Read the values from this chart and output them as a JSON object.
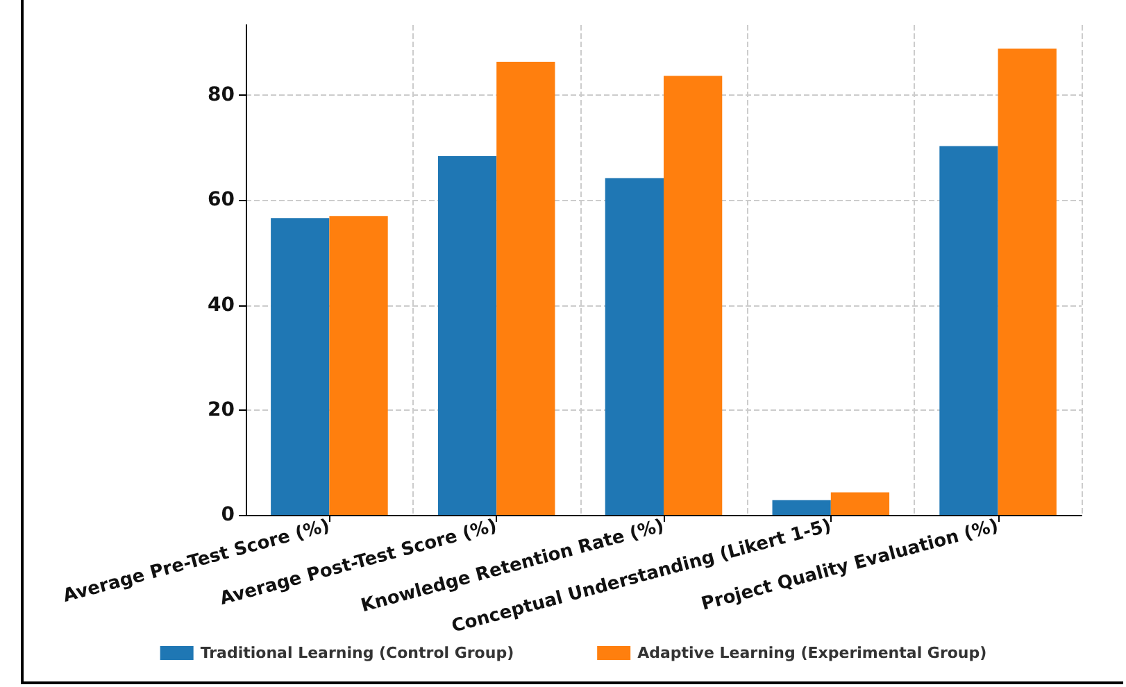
{
  "chart_data": {
    "type": "bar",
    "categories": [
      "Average Pre-Test Score (%)",
      "Average Post-Test Score (%)",
      "Knowledge Retention Rate (%)",
      "Conceptual Understanding (Likert 1-5)",
      "Project Quality Evaluation (%)"
    ],
    "series": [
      {
        "name": "Traditional Learning (Control Group)",
        "color": "#1f77b4",
        "values": [
          56.6,
          68.4,
          64.2,
          2.8,
          70.3
        ]
      },
      {
        "name": "Adaptive Learning (Experimental Group)",
        "color": "#ff7f0e",
        "values": [
          57.0,
          86.4,
          83.7,
          4.3,
          88.9
        ]
      }
    ],
    "ylim": [
      0,
      93.4
    ],
    "yticks": [
      0,
      20,
      40,
      60,
      80
    ],
    "grid": true,
    "legend": "bottom"
  }
}
